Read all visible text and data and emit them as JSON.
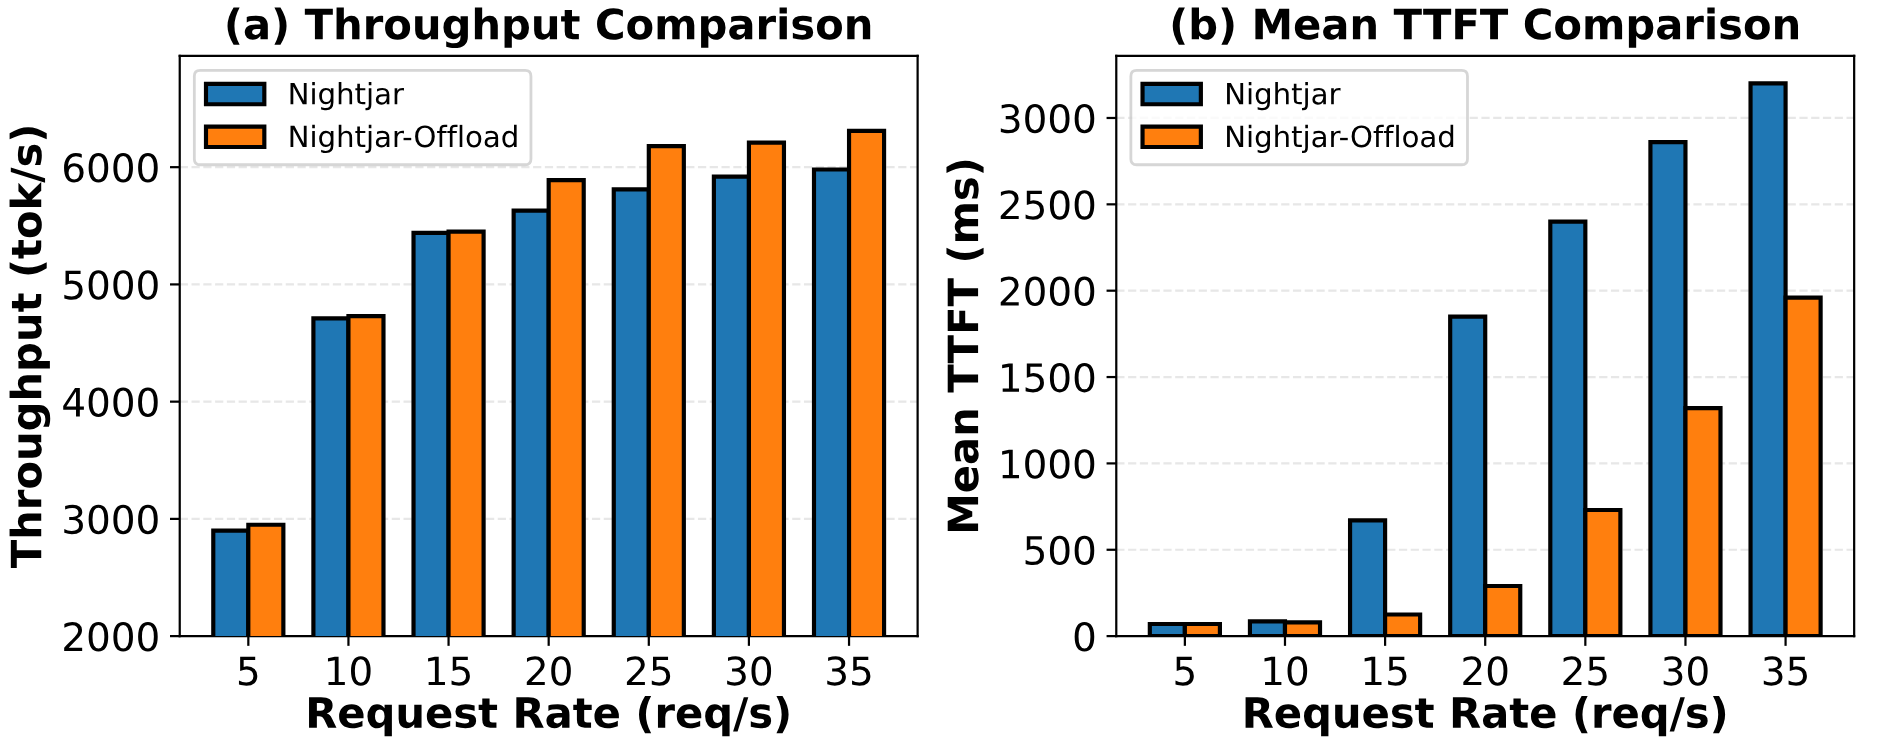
{
  "chart_data": [
    {
      "type": "bar",
      "title": "(a) Throughput Comparison",
      "xlabel": "Request Rate (req/s)",
      "ylabel": "Throughput (tok/s)",
      "categories": [
        "5",
        "10",
        "15",
        "20",
        "25",
        "30",
        "35"
      ],
      "series": [
        {
          "name": "Nightjar",
          "color": "#1f77b4",
          "values": [
            2900,
            4710,
            5440,
            5630,
            5810,
            5920,
            5980
          ]
        },
        {
          "name": "Nightjar-Offload",
          "color": "#ff7f0e",
          "values": [
            2950,
            4730,
            5450,
            5890,
            6180,
            6210,
            6310
          ]
        }
      ],
      "ylim": [
        2000,
        6950
      ],
      "yticks": [
        2000,
        3000,
        4000,
        5000,
        6000
      ],
      "grid": "y",
      "legend": "top left"
    },
    {
      "type": "bar",
      "title": "(b) Mean TTFT Comparison",
      "xlabel": "Request Rate (req/s)",
      "ylabel": "Mean TTFT (ms)",
      "categories": [
        "5",
        "10",
        "15",
        "20",
        "25",
        "30",
        "35"
      ],
      "series": [
        {
          "name": "Nightjar",
          "color": "#1f77b4",
          "values": [
            70,
            85,
            670,
            1850,
            2400,
            2860,
            3200
          ]
        },
        {
          "name": "Nightjar-Offload",
          "color": "#ff7f0e",
          "values": [
            70,
            80,
            125,
            290,
            730,
            1320,
            1960
          ]
        }
      ],
      "ylim": [
        0,
        3360
      ],
      "yticks": [
        0,
        500,
        1000,
        1500,
        2000,
        2500,
        3000
      ],
      "grid": "y",
      "legend": "top left"
    }
  ]
}
